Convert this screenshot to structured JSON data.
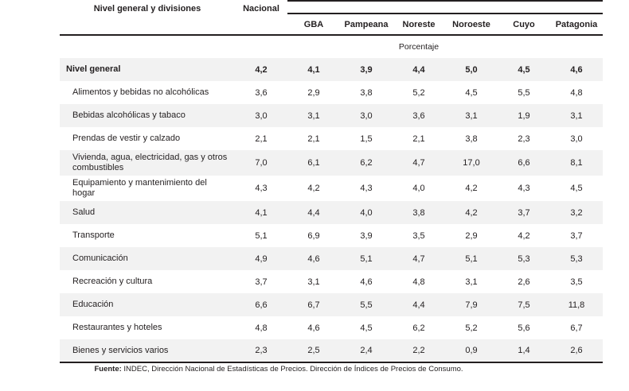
{
  "colors": {
    "text": "#231f20",
    "row_shading": "#f2f2f2",
    "rule": "#231f20"
  },
  "table": {
    "header": {
      "label_column": "Nivel general y divisiones",
      "national_column": "Nacional",
      "regions": [
        "GBA",
        "Pampeana",
        "Noreste",
        "Noroeste",
        "Cuyo",
        "Patagonia"
      ]
    },
    "unit_label": "Porcentaje",
    "rows": [
      {
        "label": "Nivel general",
        "emphasis": true,
        "values": [
          "4,2",
          "4,1",
          "3,9",
          "4,4",
          "5,0",
          "4,5",
          "4,6"
        ]
      },
      {
        "label": "Alimentos y bebidas no alcohólicas",
        "emphasis": false,
        "values": [
          "3,6",
          "2,9",
          "3,8",
          "5,2",
          "4,5",
          "5,5",
          "4,8"
        ]
      },
      {
        "label": "Bebidas alcohólicas y tabaco",
        "emphasis": false,
        "values": [
          "3,0",
          "3,1",
          "3,0",
          "3,6",
          "3,1",
          "1,9",
          "3,1"
        ]
      },
      {
        "label": "Prendas de vestir y calzado",
        "emphasis": false,
        "values": [
          "2,1",
          "2,1",
          "1,5",
          "2,1",
          "3,8",
          "2,3",
          "3,0"
        ]
      },
      {
        "label": "Vivienda, agua, electricidad, gas y otros combustibles",
        "emphasis": false,
        "values": [
          "7,0",
          "6,1",
          "6,2",
          "4,7",
          "17,0",
          "6,6",
          "8,1"
        ]
      },
      {
        "label": "Equipamiento y mantenimiento del hogar",
        "emphasis": false,
        "values": [
          "4,3",
          "4,2",
          "4,3",
          "4,0",
          "4,2",
          "4,3",
          "4,5"
        ]
      },
      {
        "label": "Salud",
        "emphasis": false,
        "values": [
          "4,1",
          "4,4",
          "4,0",
          "3,8",
          "4,2",
          "3,7",
          "3,2"
        ]
      },
      {
        "label": "Transporte",
        "emphasis": false,
        "values": [
          "5,1",
          "6,9",
          "3,9",
          "3,5",
          "2,9",
          "4,2",
          "3,7"
        ]
      },
      {
        "label": "Comunicación",
        "emphasis": false,
        "values": [
          "4,9",
          "4,6",
          "5,1",
          "4,7",
          "5,1",
          "5,3",
          "5,3"
        ]
      },
      {
        "label": "Recreación y cultura",
        "emphasis": false,
        "values": [
          "3,7",
          "3,1",
          "4,6",
          "4,8",
          "3,1",
          "2,6",
          "3,5"
        ]
      },
      {
        "label": "Educación",
        "emphasis": false,
        "values": [
          "6,6",
          "6,7",
          "5,5",
          "4,4",
          "7,9",
          "7,5",
          "11,8"
        ]
      },
      {
        "label": "Restaurantes y hoteles",
        "emphasis": false,
        "values": [
          "4,8",
          "4,6",
          "4,5",
          "6,2",
          "5,2",
          "5,6",
          "6,7"
        ]
      },
      {
        "label": "Bienes y servicios varios",
        "emphasis": false,
        "values": [
          "2,3",
          "2,5",
          "2,4",
          "2,2",
          "0,9",
          "1,4",
          "2,6"
        ]
      }
    ]
  },
  "footer": {
    "source_label": "Fuente:",
    "source_text": " INDEC, Dirección Nacional de Estadísticas de Precios. Dirección de Índices de Precios de Consumo."
  }
}
